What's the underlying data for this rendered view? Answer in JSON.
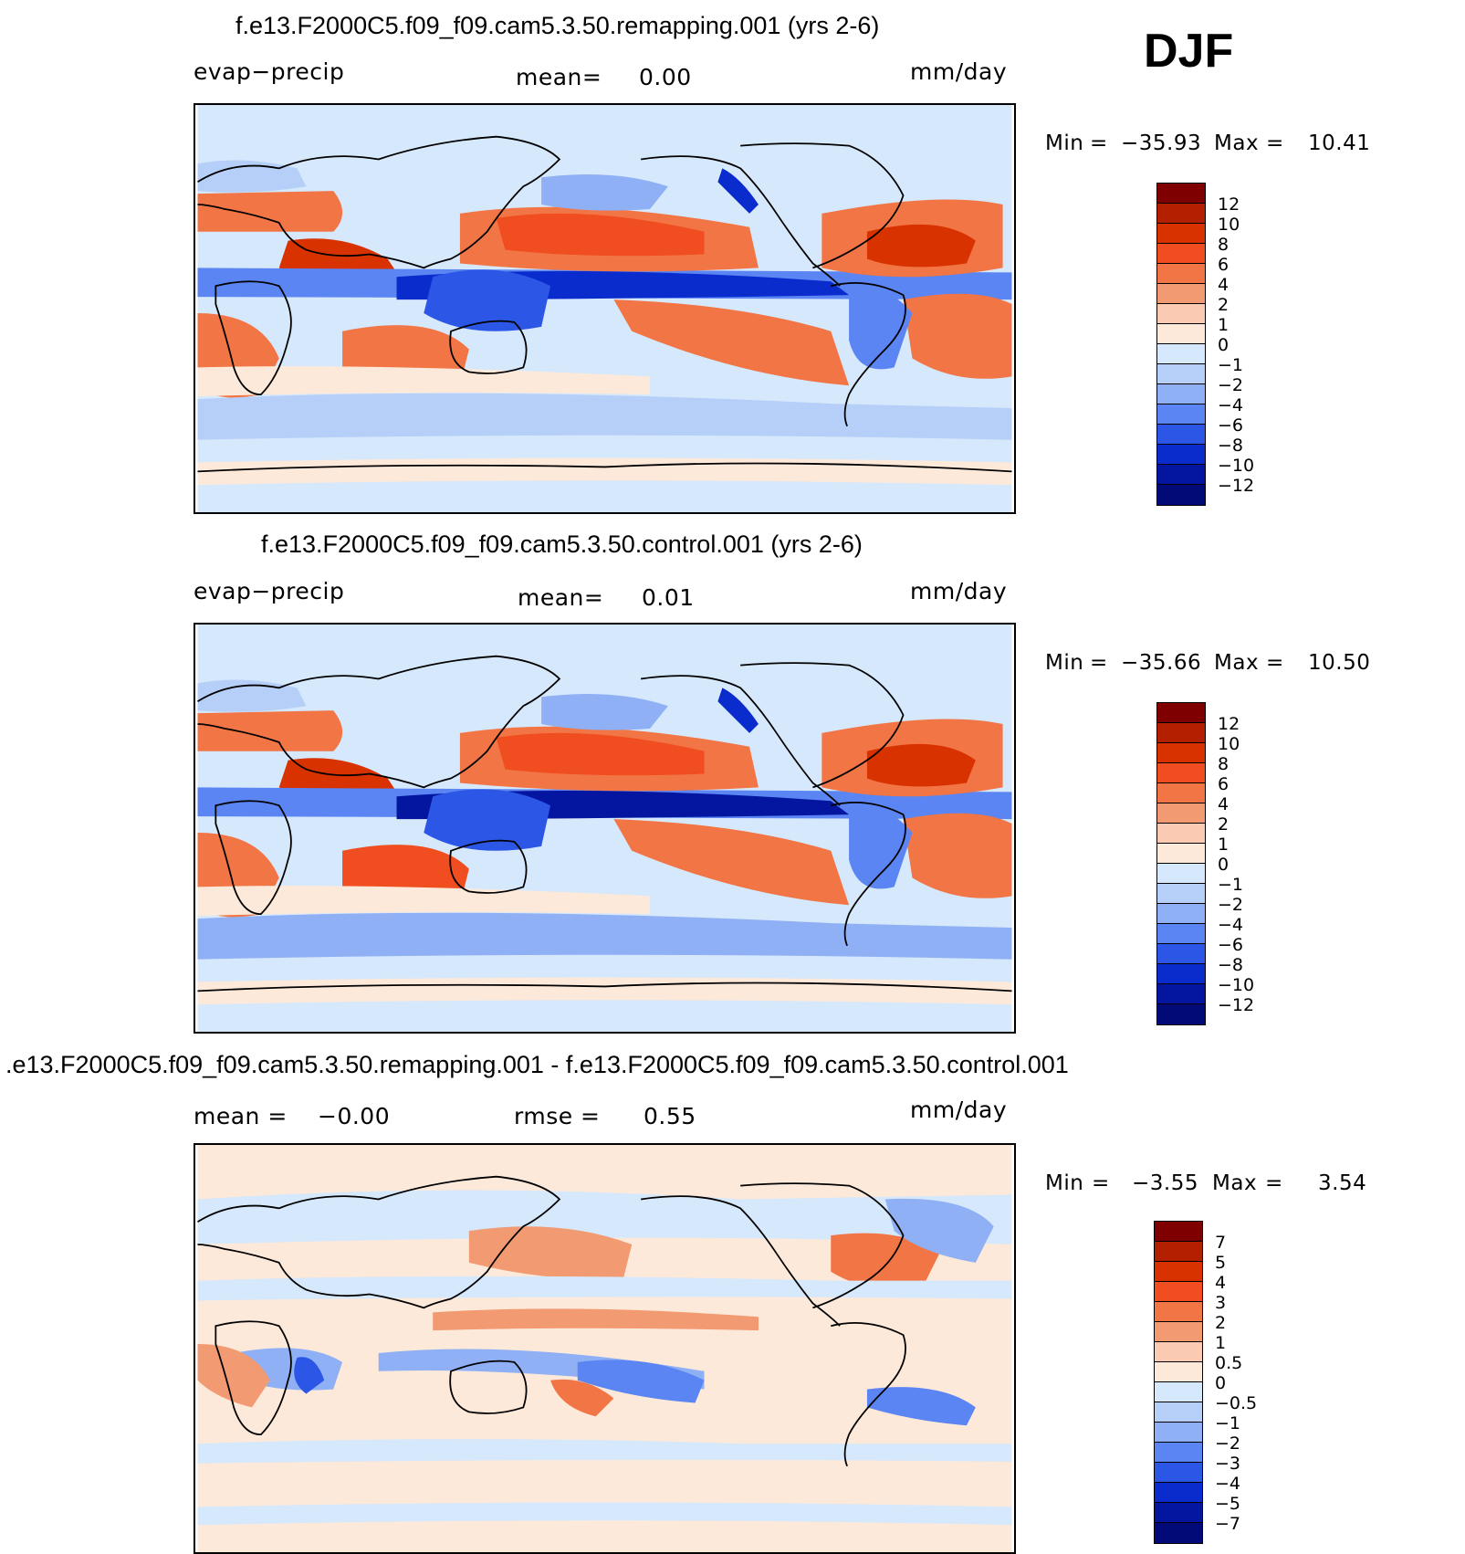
{
  "season": "DJF",
  "panels": [
    {
      "title": "f.e13.F2000C5.f09_f09.cam5.3.50.remapping.001 (yrs 2-6)",
      "variable": "evap−precip",
      "mean_label": "mean=",
      "mean_value": "0.00",
      "units": "mm/day",
      "min_label": "Min",
      "min_value": "−35.93",
      "max_label": "Max",
      "max_value": "10.41",
      "colorbar_ticks": [
        "12",
        "10",
        "8",
        "6",
        "4",
        "2",
        "1",
        "0",
        "−1",
        "−2",
        "−4",
        "−6",
        "−8",
        "−10",
        "−12"
      ]
    },
    {
      "title": "f.e13.F2000C5.f09_f09.cam5.3.50.control.001 (yrs 2-6)",
      "variable": "evap−precip",
      "mean_label": "mean=",
      "mean_value": "0.01",
      "units": "mm/day",
      "min_label": "Min",
      "min_value": "−35.66",
      "max_label": "Max",
      "max_value": "10.50",
      "colorbar_ticks": [
        "12",
        "10",
        "8",
        "6",
        "4",
        "2",
        "1",
        "0",
        "−1",
        "−2",
        "−4",
        "−6",
        "−8",
        "−10",
        "−12"
      ]
    },
    {
      "title": ".e13.F2000C5.f09_f09.cam5.3.50.remapping.001 - f.e13.F2000C5.f09_f09.cam5.3.50.control.001",
      "mean_label": "mean =",
      "mean_value": "−0.00",
      "rmse_label": "rmse =",
      "rmse_value": "0.55",
      "units": "mm/day",
      "min_label": "Min",
      "min_value": "−3.55",
      "max_label": "Max",
      "max_value": "3.54",
      "colorbar_ticks": [
        "7",
        "5",
        "4",
        "3",
        "2",
        "1",
        "0.5",
        "0",
        "−0.5",
        "−1",
        "−2",
        "−3",
        "−4",
        "−5",
        "−7"
      ]
    }
  ],
  "colors": [
    "#7f0000",
    "#b22000",
    "#d83200",
    "#f04e20",
    "#f27545",
    "#f29a72",
    "#fbcab3",
    "#fde9da",
    "#d6e8fb",
    "#b6cff8",
    "#8fb0f4",
    "#5a85f2",
    "#2b56e6",
    "#0a2ccc",
    "#0416a0",
    "#020a78"
  ]
}
